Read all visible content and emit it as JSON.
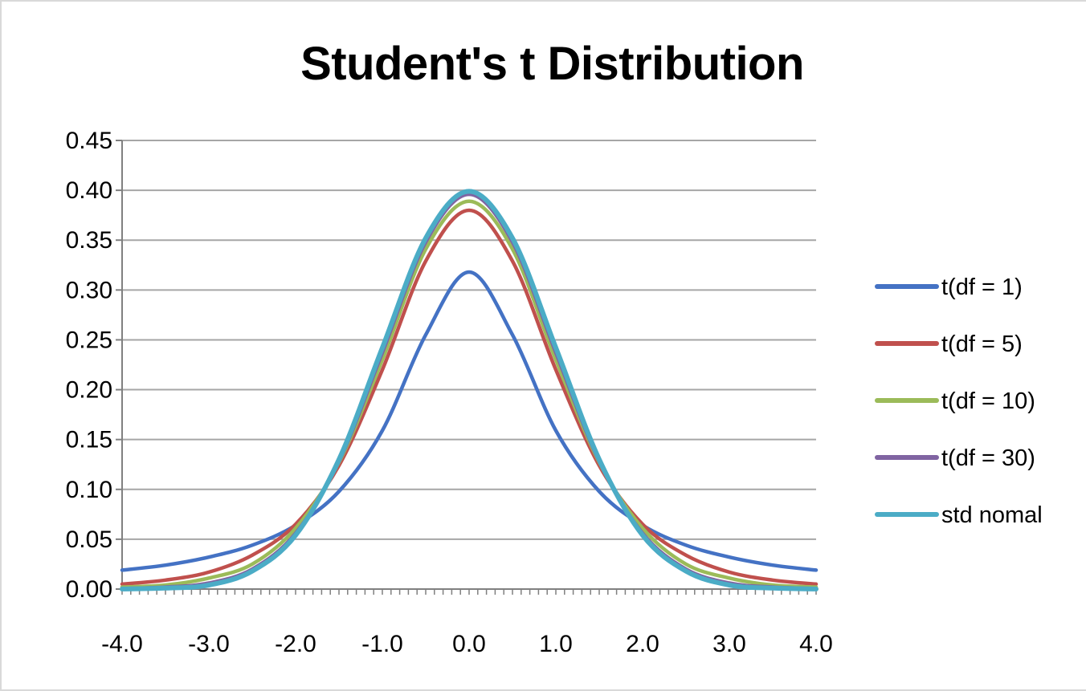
{
  "chart_data": {
    "type": "line",
    "title": "Student's t Distribution",
    "xlabel": "",
    "ylabel": "",
    "xlim": [
      -4.0,
      4.0
    ],
    "ylim": [
      0.0,
      0.45
    ],
    "x_ticks": [
      "-4.0",
      "-3.0",
      "-2.0",
      "-1.0",
      "0.0",
      "1.0",
      "2.0",
      "3.0",
      "4.0"
    ],
    "y_ticks": [
      "0.00",
      "0.05",
      "0.10",
      "0.15",
      "0.20",
      "0.25",
      "0.30",
      "0.35",
      "0.40",
      "0.45"
    ],
    "grid": "horizontal",
    "legend_position": "right",
    "x": [
      -4.0,
      -3.5,
      -3.0,
      -2.5,
      -2.0,
      -1.5,
      -1.0,
      -0.5,
      0.0,
      0.5,
      1.0,
      1.5,
      2.0,
      2.5,
      3.0,
      3.5,
      4.0
    ],
    "series": [
      {
        "name": "t(df = 1)",
        "color": "#4472C4",
        "values": [
          0.019,
          0.024,
          0.032,
          0.044,
          0.064,
          0.098,
          0.159,
          0.255,
          0.318,
          0.255,
          0.159,
          0.098,
          0.064,
          0.044,
          0.032,
          0.024,
          0.019
        ]
      },
      {
        "name": "t(df = 5)",
        "color": "#C0504D",
        "values": [
          0.005,
          0.009,
          0.017,
          0.034,
          0.065,
          0.124,
          0.22,
          0.329,
          0.38,
          0.329,
          0.22,
          0.124,
          0.065,
          0.034,
          0.017,
          0.009,
          0.005
        ]
      },
      {
        "name": "t(df = 10)",
        "color": "#9BBB59",
        "values": [
          0.002,
          0.004,
          0.011,
          0.025,
          0.061,
          0.127,
          0.23,
          0.341,
          0.389,
          0.341,
          0.23,
          0.127,
          0.061,
          0.025,
          0.011,
          0.004,
          0.002
        ]
      },
      {
        "name": "t(df = 30)",
        "color": "#8064A2",
        "values": [
          0.0005,
          0.002,
          0.006,
          0.02,
          0.056,
          0.128,
          0.237,
          0.348,
          0.396,
          0.348,
          0.237,
          0.128,
          0.056,
          0.02,
          0.006,
          0.002,
          0.0005
        ]
      },
      {
        "name": "std nomal",
        "color": "#4BACC6",
        "values": [
          0.0001,
          0.001,
          0.004,
          0.018,
          0.054,
          0.13,
          0.242,
          0.352,
          0.399,
          0.352,
          0.242,
          0.13,
          0.054,
          0.018,
          0.004,
          0.001,
          0.0001
        ]
      }
    ]
  }
}
